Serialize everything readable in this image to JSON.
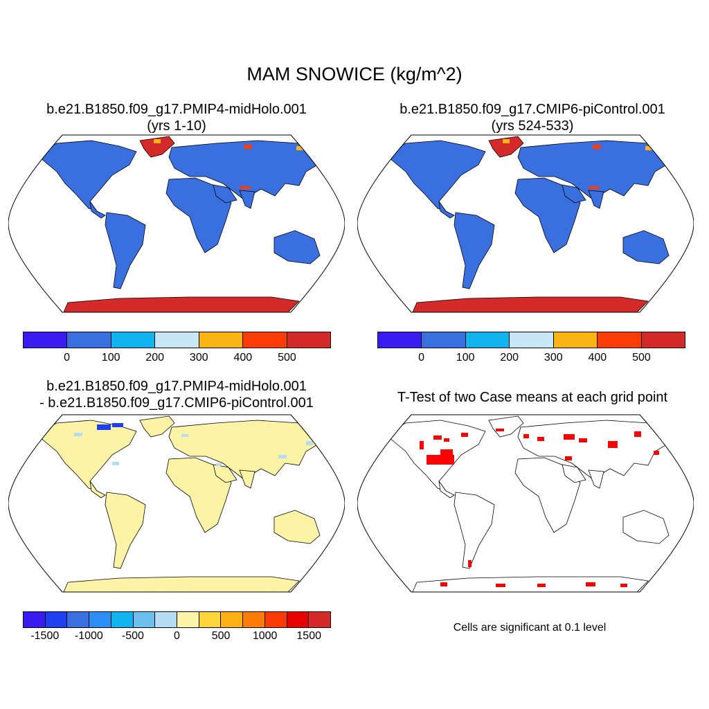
{
  "figure": {
    "title": "MAM SNOWICE (kg/m^2)",
    "colors": {
      "ocean": "#ffffff",
      "coast": "#000000",
      "significant": "#ff0000"
    }
  },
  "panels": [
    {
      "title_line1": "b.e21.B1850.f09_g17.PMIP4-midHolo.001",
      "title_line2": "(yrs 1-10)",
      "land_color": "#3a6fe0",
      "ice_color": "#d52a2a"
    },
    {
      "title_line1": "b.e21.B1850.f09_g17.CMIP6-piControl.001",
      "title_line2": "(yrs 524-533)",
      "land_color": "#3a6fe0",
      "ice_color": "#d52a2a"
    },
    {
      "title_line1": "b.e21.B1850.f09_g17.PMIP4-midHolo.001",
      "title_line2": "- b.e21.B1850.f09_g17.CMIP6-piControl.001",
      "land_color": "#fdf3a6",
      "ice_color": "#fdf3a6"
    },
    {
      "title_line1": "T-Test of two Case means at each grid point",
      "land_color": "#ffffff",
      "ice_color": "#ffffff"
    }
  ],
  "chart_data": [
    {
      "type": "heatmap",
      "title": "b.e21.B1850.f09_g17.PMIP4-midHolo.001 (yrs 1-10)",
      "colorbar": {
        "colors": [
          "#3b1bf0",
          "#3a6fe0",
          "#12b4ef",
          "#c7e7f7",
          "#fbb514",
          "#fc3c07",
          "#d52a2a"
        ],
        "tick_labels": [
          "0",
          "100",
          "200",
          "300",
          "400",
          "500"
        ]
      }
    },
    {
      "type": "heatmap",
      "title": "b.e21.B1850.f09_g17.CMIP6-piControl.001 (yrs 524-533)",
      "colorbar": {
        "colors": [
          "#3b1bf0",
          "#3a6fe0",
          "#12b4ef",
          "#c7e7f7",
          "#fbb514",
          "#fc3c07",
          "#d52a2a"
        ],
        "tick_labels": [
          "0",
          "100",
          "200",
          "300",
          "400",
          "500"
        ]
      }
    },
    {
      "type": "heatmap",
      "title": "b.e21.B1850.f09_g17.PMIP4-midHolo.001 - b.e21.B1850.f09_g17.CMIP6-piControl.001",
      "colorbar": {
        "colors": [
          "#3b1bf0",
          "#1d40f0",
          "#3a6fe0",
          "#2a8ef2",
          "#12b4ef",
          "#6cc0ee",
          "#b4dcf2",
          "#fdf3a6",
          "#fdd43a",
          "#fcb014",
          "#fc7c0a",
          "#fc3a06",
          "#e60000",
          "#d52a2a"
        ],
        "tick_labels": [
          "-1500",
          "-1000",
          "-500",
          "0",
          "500",
          "1000",
          "1500"
        ]
      }
    },
    {
      "type": "heatmap",
      "title": "T-Test of two Case means at each grid point",
      "note": "Cells are significant at 0.1 level"
    }
  ]
}
